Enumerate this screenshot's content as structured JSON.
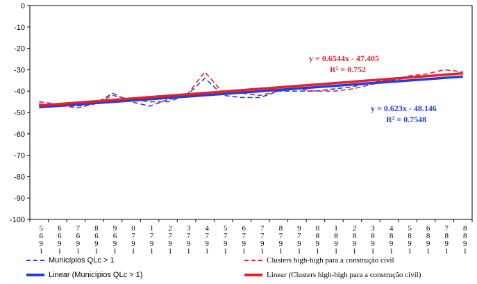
{
  "chart_data": {
    "type": "line",
    "x_categories": [
      "1965",
      "1966",
      "1967",
      "1968",
      "1969",
      "1970",
      "1971",
      "1972",
      "1973",
      "1974",
      "1975",
      "1976",
      "1977",
      "1978",
      "1979",
      "1980",
      "1981",
      "1982",
      "1983",
      "1984",
      "1985",
      "1986",
      "1987",
      "1988"
    ],
    "y_ticks": [
      "0",
      "-10",
      "-20",
      "-30",
      "-40",
      "-50",
      "-60",
      "-70",
      "-80",
      "-90",
      "-100"
    ],
    "ylim": [
      -100,
      0
    ],
    "grid": false,
    "legend_position": "bottom",
    "series": [
      {
        "name": "Municípios QLc > 1",
        "color": "#1f3fdc",
        "style": "dashed",
        "values": [
          -46,
          -47,
          -47,
          -46,
          -41,
          -45,
          -47,
          -44,
          -42,
          -34,
          -42,
          -43,
          -43,
          -40,
          -40,
          -40,
          -39,
          -38,
          -36,
          -35,
          -34,
          -33,
          -32,
          -32
        ]
      },
      {
        "name": "Clusters high-high para a construção civil",
        "color": "#e8202a",
        "style": "dashed",
        "values": [
          -45,
          -46,
          -48,
          -46,
          -42,
          -44,
          -45,
          -45,
          -42,
          -31,
          -41,
          -41,
          -42,
          -40,
          -39,
          -40,
          -40,
          -39,
          -37,
          -35,
          -33,
          -32,
          -30,
          -31
        ]
      },
      {
        "name": "Linear (Municípios QLc > 1)",
        "color": "#1f3fdc",
        "style": "solid",
        "trend": {
          "slope": 0.623,
          "intercept": -48.146
        },
        "equation": "y = 0.623x - 48.146",
        "r2": "R² = 0.7548"
      },
      {
        "name": "Linear (Clusters high-high para a construção civil)",
        "color": "#e8202a",
        "style": "solid",
        "trend": {
          "slope": 0.6544,
          "intercept": -47.405
        },
        "equation": "y = 0.6544x - 47.405",
        "r2": "R² = 0.752"
      }
    ]
  }
}
